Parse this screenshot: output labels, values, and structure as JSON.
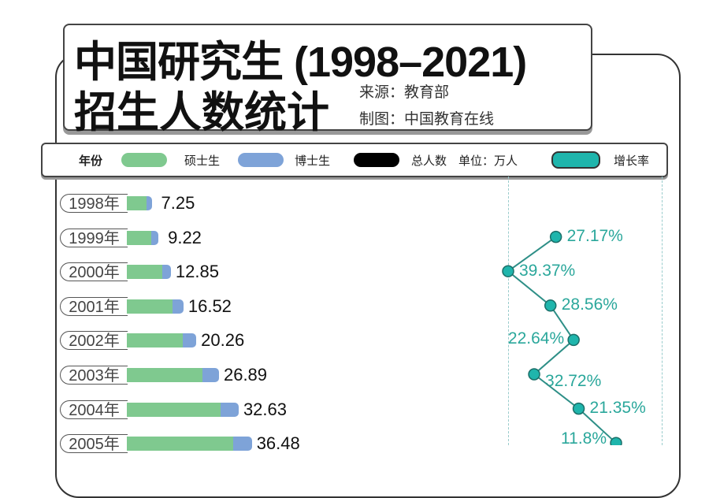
{
  "header": {
    "title_line1": "中国研究生 (1998–2021)",
    "title_line2": "招生人数统计",
    "source": "来源：教育部",
    "maker": "制图：中国教育在线"
  },
  "legend": {
    "year": "年份",
    "masters": "硕士生",
    "doctoral": "博士生",
    "total": "总人数",
    "unit": "单位：万人",
    "growth": "增长率"
  },
  "colors": {
    "masters": "#7fc98f",
    "doctoral": "#7ea3d8",
    "total": "#000000",
    "growth": "#1fb5ac",
    "growth_text": "#2aa79b"
  },
  "chart_data": {
    "type": "bar",
    "categories": [
      "1998年",
      "1999年",
      "2000年",
      "2001年",
      "2002年",
      "2003年",
      "2004年",
      "2005年"
    ],
    "series": [
      {
        "name": "硕士生",
        "values": [
          5.75,
          7.23,
          10.34,
          13.31,
          16.43,
          22.02,
          27.3,
          31.0
        ]
      },
      {
        "name": "博士生",
        "values": [
          1.5,
          1.99,
          2.51,
          3.21,
          3.83,
          4.87,
          5.33,
          5.48
        ]
      }
    ],
    "totals": [
      7.25,
      9.22,
      12.85,
      16.52,
      20.26,
      26.89,
      32.63,
      36.48
    ],
    "total_labels": [
      "7.25",
      "9.22",
      "12.85",
      "16.52",
      "20.26",
      "26.89",
      "32.63",
      "36.48"
    ],
    "growth_rate": {
      "name": "增长率",
      "values": [
        null,
        27.17,
        39.37,
        28.56,
        22.64,
        32.72,
        21.35,
        11.8
      ],
      "labels": [
        "",
        "27.17%",
        "39.37%",
        "28.56%",
        "22.64%",
        "32.72%",
        "21.35%",
        "11.8%"
      ]
    },
    "unit": "万人"
  }
}
